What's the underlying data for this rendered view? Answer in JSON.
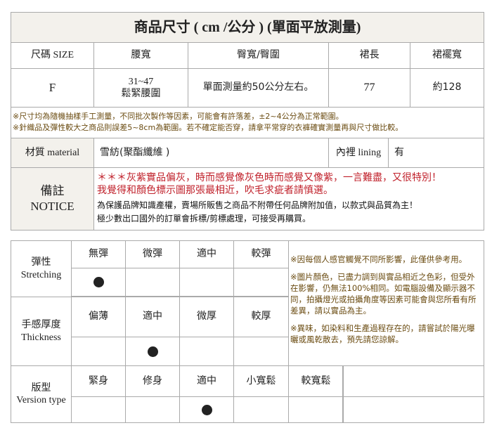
{
  "size_table": {
    "title": "商品尺寸 ( cm /公分 ) (單面平放測量)",
    "headers": [
      "尺碼 SIZE",
      "腰寬",
      "臀寬/臀圍",
      "裙長",
      "裙襬寬"
    ],
    "row": {
      "size": "F",
      "waist_line1": "31~47",
      "waist_line2": "鬆緊腰圍",
      "hip": "單面測量約50公分左右。",
      "length": "77",
      "hem": "約128"
    },
    "notes": [
      "※尺寸均為隨機抽樣手工測量，不同批次製作等因素，可能會有許落差，±2~4公分為正常範圍。",
      "※針織品及彈性較大之商品則誤差5~8cm為範圍。若不確定能否穿，請拿平常穿的衣褲確實測量再與尺寸做比較。"
    ],
    "material_label": "材質 material",
    "material_value": "雪紡(聚酯纖維 )",
    "lining_label": "內裡 lining",
    "lining_value": "有",
    "notice_label_zh": "備註",
    "notice_label_en": "NOTICE",
    "notice_red": [
      "＊＊＊灰紫實品偏灰，時而感覺像灰色時而感覺又像紫，一言難盡，又很特別！",
      "我覺得和顏色標示圖那張最相近，吹毛求疵者請慎選。"
    ],
    "notice_black": [
      "為保護品牌知識產權，賣場所販售之商品不附帶任何品牌附加值，以款式與品質為主！",
      "極少數出口國外的訂單會拆標/剪標處理，可接受再購買。"
    ],
    "colors": {
      "red_text": "#c0212b",
      "note_text": "#6b4c12",
      "header_bg": "#f3f1ec"
    }
  },
  "feel_table": {
    "stretching": {
      "label_zh": "彈性",
      "label_en": "Stretching",
      "options": [
        "無彈",
        "微彈",
        "適中",
        "較彈"
      ],
      "selected": 0
    },
    "thickness": {
      "label_zh": "手感厚度",
      "label_en": "Thickness",
      "options": [
        "偏薄",
        "適中",
        "微厚",
        "較厚"
      ],
      "selected": 1
    },
    "version": {
      "label_zh": "版型",
      "label_en": "Version type",
      "options": [
        "緊身",
        "修身",
        "適中",
        "小寬鬆",
        "較寬鬆"
      ],
      "selected": 2
    },
    "notes": [
      "※因每個人感官觸覺不同所影響，此僅供參考用。",
      "※圖片顏色，已盡力調到與實品相近之色彩，但受外在影響，仍無法100%相同。如電腦設備及顯示器不同，拍攝燈光或拍攝角度等因素可能會與您所看有所差異，請以實品為主。",
      "※異味，如染料和生產過程存在的，請嘗試於陽光曝曬或風乾散去，預先請您諒解。"
    ]
  }
}
